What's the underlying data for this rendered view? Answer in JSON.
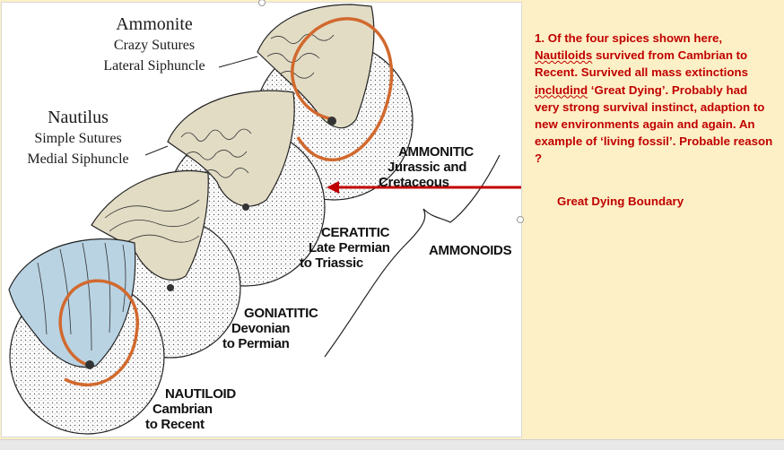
{
  "figure": {
    "ammonite": {
      "title": "Ammonite",
      "line1": "Crazy Sutures",
      "line2": "Lateral Siphuncle"
    },
    "nautilus": {
      "title": "Nautilus",
      "line1": "Simple Sutures",
      "line2": "Medial Siphuncle"
    },
    "stages": {
      "ammonitic": [
        "AMMONITIC",
        "Jurassic and",
        "Cretaceous"
      ],
      "ceratitic": [
        "CERATITIC",
        "Late Permian",
        "to Triassic"
      ],
      "goniatitic": [
        "GONIATITIC",
        "Devonian",
        "to Permian"
      ],
      "nautiloid": [
        "NAUTILOID",
        "Cambrian",
        "to Recent"
      ]
    },
    "group_label": "AMMONOIDS"
  },
  "note": {
    "part1": "1. Of the four spices shown here, ",
    "u1": "Nautiloids",
    "part2": " survived from Cambrian to Recent. Survived all  mass extinctions ",
    "u2": "includind",
    "part3": " ‘Great Dying’. Probably had very strong survival instinct, adaption to new environments again and again. An example of ‘living fossil’.  Probable reason ?"
  },
  "boundary_label": "Great Dying Boundary",
  "colors": {
    "background": "#fdf0c6",
    "accent": "#c00000",
    "siphuncle": "#d2692e",
    "nautilus_shell": "#b9d3e3",
    "ammonoid_shell": "#e2dcc5"
  }
}
